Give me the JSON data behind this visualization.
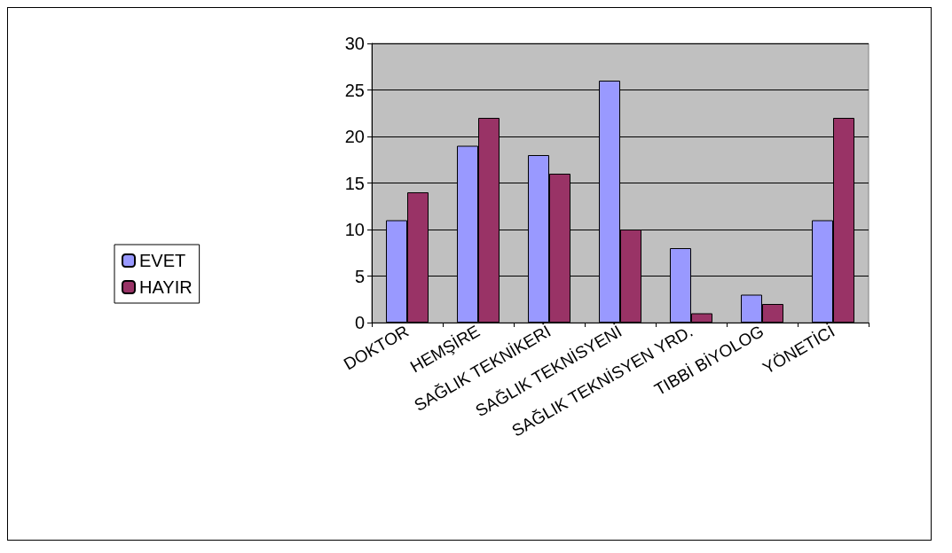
{
  "chart_data": {
    "type": "bar",
    "categories": [
      "DOKTOR",
      "HEMŞİRE",
      "SAĞLIK TEKNİKERİ",
      "SAĞLIK TEKNİSYENİ",
      "SAĞLIK TEKNİSYEN YRD.",
      "TIBBİ BİYOLOG",
      "YÖNETİCİ"
    ],
    "series": [
      {
        "name": "EVET",
        "color": "#9999ff",
        "values": [
          11,
          19,
          18,
          26,
          8,
          3,
          11
        ]
      },
      {
        "name": "HAYIR",
        "color": "#993366",
        "values": [
          14,
          22,
          16,
          10,
          1,
          2,
          22
        ]
      }
    ],
    "ylim": [
      0,
      30
    ],
    "yticks": [
      0,
      5,
      10,
      15,
      20,
      25,
      30
    ],
    "grid": "y",
    "legend": "left"
  }
}
